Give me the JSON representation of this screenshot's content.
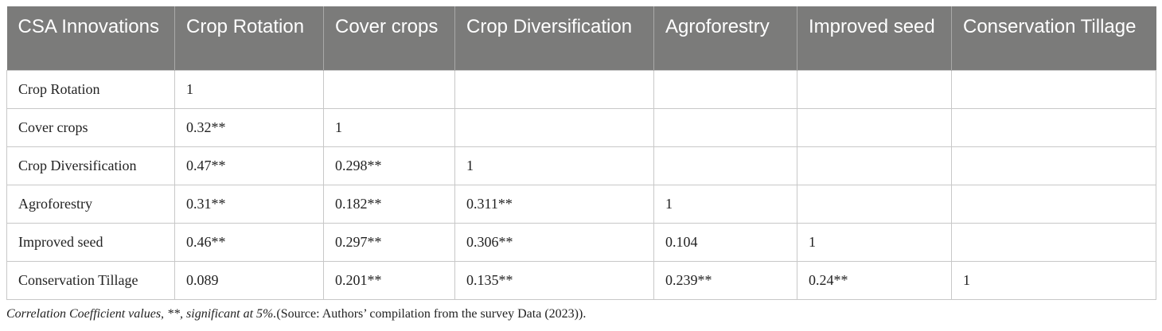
{
  "table": {
    "headers": [
      "CSA Innovations",
      "Crop Rotation",
      "Cover crops",
      "Crop Diversification",
      "Agroforestry",
      "Improved seed",
      "Conservation Tillage"
    ],
    "rows": [
      [
        "Crop Rotation",
        "1",
        "",
        "",
        "",
        "",
        ""
      ],
      [
        "Cover crops",
        "0.32**",
        "1",
        "",
        "",
        "",
        ""
      ],
      [
        "Crop Diversification",
        "0.47**",
        "0.298**",
        "1",
        "",
        "",
        ""
      ],
      [
        "Agroforestry",
        "0.31**",
        "0.182**",
        "0.311**",
        "1",
        "",
        ""
      ],
      [
        "Improved seed",
        "0.46**",
        "0.297**",
        "0.306**",
        "0.104",
        "1",
        ""
      ],
      [
        "Conservation Tillage",
        "0.089",
        "0.201**",
        "0.135**",
        "0.239**",
        "0.24**",
        "1"
      ]
    ]
  },
  "caption": {
    "italic": "Correlation Coefficient values, **, significant at 5%.",
    "plain": "(Source: Authors’ compilation from the survey Data (2023))."
  },
  "colors": {
    "header_bg": "#7b7b7a",
    "header_text": "#ffffff",
    "grid": "#c8c8c8"
  }
}
